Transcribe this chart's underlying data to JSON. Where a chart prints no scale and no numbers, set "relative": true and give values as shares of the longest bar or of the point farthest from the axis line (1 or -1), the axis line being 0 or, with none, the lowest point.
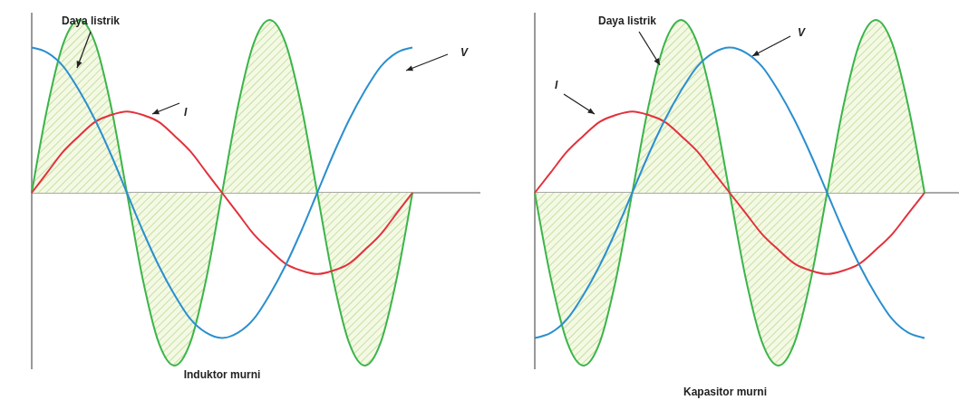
{
  "chart_data": [
    {
      "type": "line",
      "title": "Induktor murni",
      "relative": true,
      "categories": [
        null,
        null,
        null,
        null,
        null,
        null,
        null,
        null,
        null,
        null,
        null,
        null,
        null,
        null,
        null,
        null,
        null,
        null,
        null,
        null,
        null,
        null,
        null,
        null,
        null
      ],
      "series": [
        {
          "name": "Daya listrik",
          "type": "area",
          "color": "#3cb54a",
          "values": [
            0,
            0.5,
            0.866,
            1,
            0.866,
            0.5,
            0,
            -0.5,
            -0.866,
            -1,
            -0.866,
            -0.5,
            0,
            0.5,
            0.866,
            1,
            0.866,
            0.5,
            0,
            -0.5,
            -0.866,
            -1,
            -0.866,
            -0.5,
            0
          ]
        },
        {
          "name": "I",
          "color": "#e2323c",
          "values": [
            0,
            0.12,
            0.24,
            0.33,
            0.41,
            0.45,
            0.47,
            0.45,
            0.41,
            0.33,
            0.24,
            0.12,
            0,
            -0.12,
            -0.24,
            -0.33,
            -0.41,
            -0.45,
            -0.47,
            -0.45,
            -0.41,
            -0.33,
            -0.24,
            -0.12,
            0
          ]
        },
        {
          "name": "V",
          "color": "#2b8fcf",
          "values": [
            0.84,
            0.81,
            0.73,
            0.59,
            0.42,
            0.22,
            0,
            -0.22,
            -0.42,
            -0.59,
            -0.73,
            -0.81,
            -0.84,
            -0.81,
            -0.73,
            -0.59,
            -0.42,
            -0.22,
            0,
            0.22,
            0.42,
            0.59,
            0.73,
            0.81,
            0.84
          ]
        }
      ]
    },
    {
      "type": "line",
      "title": "Kapasitor murni",
      "relative": true,
      "categories": [
        null,
        null,
        null,
        null,
        null,
        null,
        null,
        null,
        null,
        null,
        null,
        null,
        null,
        null,
        null,
        null,
        null,
        null,
        null,
        null,
        null,
        null,
        null,
        null,
        null
      ],
      "series": [
        {
          "name": "Daya listrik",
          "type": "area",
          "color": "#3cb54a",
          "values": [
            0,
            -0.5,
            -0.866,
            -1,
            -0.866,
            -0.5,
            0,
            0.5,
            0.866,
            1,
            0.866,
            0.5,
            0,
            -0.5,
            -0.866,
            -1,
            -0.866,
            -0.5,
            0,
            0.5,
            0.866,
            1,
            0.866,
            0.5,
            0
          ]
        },
        {
          "name": "I",
          "color": "#e2323c",
          "values": [
            0,
            0.12,
            0.24,
            0.33,
            0.41,
            0.45,
            0.47,
            0.45,
            0.41,
            0.33,
            0.24,
            0.12,
            0,
            -0.12,
            -0.24,
            -0.33,
            -0.41,
            -0.45,
            -0.47,
            -0.45,
            -0.41,
            -0.33,
            -0.24,
            -0.12,
            0
          ]
        },
        {
          "name": "V",
          "color": "#2b8fcf",
          "values": [
            -0.84,
            -0.81,
            -0.73,
            -0.59,
            -0.42,
            -0.22,
            0,
            0.22,
            0.42,
            0.59,
            0.73,
            0.81,
            0.84,
            0.81,
            0.73,
            0.59,
            0.42,
            0.22,
            0,
            -0.22,
            -0.42,
            -0.59,
            -0.73,
            -0.81,
            -0.84
          ]
        }
      ]
    }
  ]
}
